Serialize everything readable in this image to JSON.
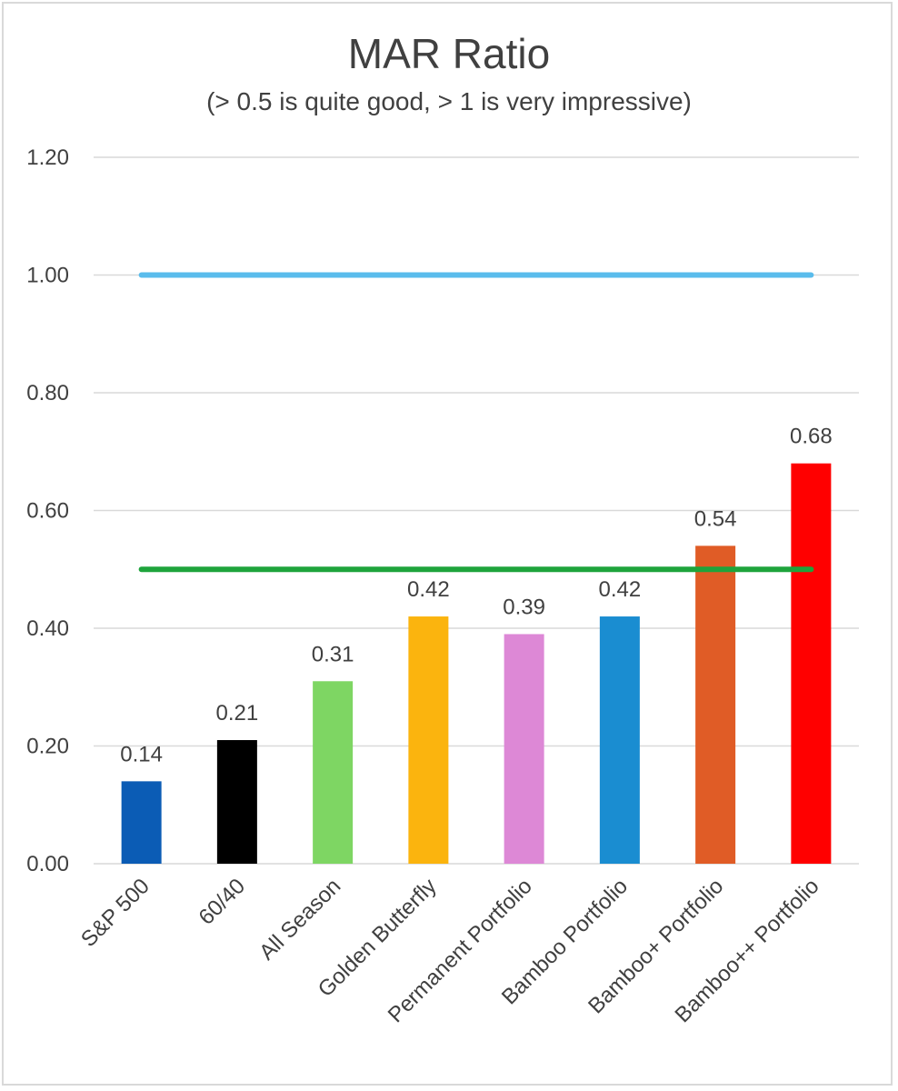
{
  "chart_data": {
    "type": "bar",
    "title": "MAR Ratio",
    "subtitle": "(> 0.5 is quite good, > 1 is very impressive)",
    "xlabel": "",
    "ylabel": "",
    "ylim": [
      0,
      1.2
    ],
    "yticks": [
      "0.00",
      "0.20",
      "0.40",
      "0.60",
      "0.80",
      "1.00",
      "1.20"
    ],
    "ytick_values": [
      0,
      0.2,
      0.4,
      0.6,
      0.8,
      1.0,
      1.2
    ],
    "grid": true,
    "legend": "none",
    "categories": [
      "S&P 500",
      "60/40",
      "All Season",
      "Golden Butterfly",
      "Permanent Portfolio",
      "Bamboo Portfolio",
      "Bamboo+ Portfolio",
      "Bamboo++ Portfolio"
    ],
    "values": [
      0.14,
      0.21,
      0.31,
      0.42,
      0.39,
      0.42,
      0.54,
      0.68
    ],
    "data_labels": [
      "0.14",
      "0.21",
      "0.31",
      "0.42",
      "0.39",
      "0.42",
      "0.54",
      "0.68"
    ],
    "bar_colors": [
      "#0b5cb5",
      "#000000",
      "#7ed663",
      "#fbb40e",
      "#dd88d6",
      "#1a8dd1",
      "#e05c26",
      "#ff0000"
    ],
    "reference_lines": [
      {
        "value": 1.0,
        "color": "#5abcec"
      },
      {
        "value": 0.5,
        "color": "#1ea43c"
      }
    ]
  }
}
